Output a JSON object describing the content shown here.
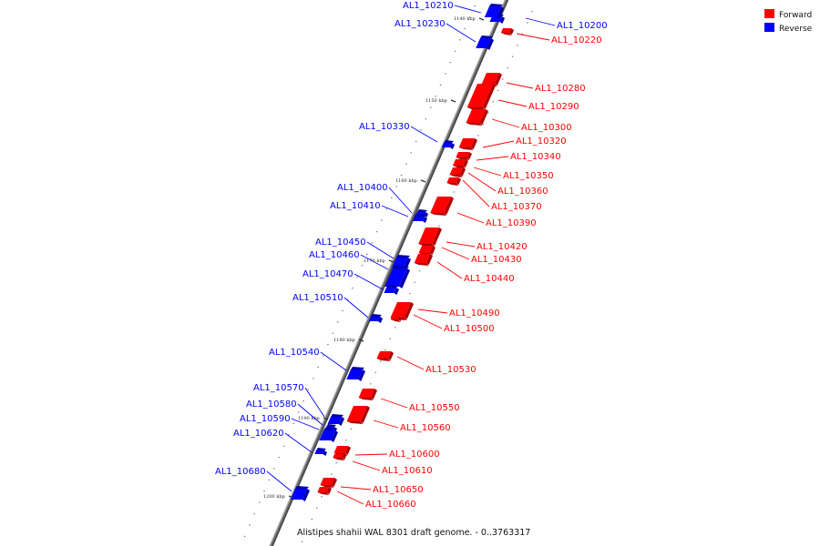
{
  "diagram": {
    "caption": "Alistipes shahii WAL 8301 draft genome. - 0..3763317",
    "legend": [
      {
        "label": "Forward",
        "color": "#ff0000"
      },
      {
        "label": "Reverse",
        "color": "#0000ff"
      }
    ],
    "colors": {
      "forward": "#ff0000",
      "forward_dark": "#b00000",
      "reverse": "#0000ff",
      "reverse_dark": "#0000a8",
      "backbone": "#6e6e6e",
      "tick": "#333333"
    },
    "kbp_labels": [
      "1140 kbp",
      "1150 kbp",
      "1160 kbp",
      "1170 kbp",
      "1180 kbp",
      "1190 kbp",
      "1200 kbp"
    ],
    "genes": [
      {
        "name": "AL1_10200",
        "strand": "reverse"
      },
      {
        "name": "AL1_10210",
        "strand": "reverse"
      },
      {
        "name": "AL1_10220",
        "strand": "forward"
      },
      {
        "name": "AL1_10230",
        "strand": "reverse"
      },
      {
        "name": "AL1_10280",
        "strand": "forward"
      },
      {
        "name": "AL1_10290",
        "strand": "forward"
      },
      {
        "name": "AL1_10300",
        "strand": "forward"
      },
      {
        "name": "AL1_10320",
        "strand": "forward"
      },
      {
        "name": "AL1_10330",
        "strand": "reverse"
      },
      {
        "name": "AL1_10340",
        "strand": "forward"
      },
      {
        "name": "AL1_10350",
        "strand": "forward"
      },
      {
        "name": "AL1_10360",
        "strand": "forward"
      },
      {
        "name": "AL1_10370",
        "strand": "forward"
      },
      {
        "name": "AL1_10390",
        "strand": "forward"
      },
      {
        "name": "AL1_10400",
        "strand": "reverse"
      },
      {
        "name": "AL1_10410",
        "strand": "reverse"
      },
      {
        "name": "AL1_10420",
        "strand": "forward"
      },
      {
        "name": "AL1_10430",
        "strand": "forward"
      },
      {
        "name": "AL1_10440",
        "strand": "forward"
      },
      {
        "name": "AL1_10450",
        "strand": "reverse"
      },
      {
        "name": "AL1_10460",
        "strand": "reverse"
      },
      {
        "name": "AL1_10470",
        "strand": "reverse"
      },
      {
        "name": "AL1_10490",
        "strand": "forward"
      },
      {
        "name": "AL1_10500",
        "strand": "forward"
      },
      {
        "name": "AL1_10510",
        "strand": "reverse"
      },
      {
        "name": "AL1_10530",
        "strand": "forward"
      },
      {
        "name": "AL1_10540",
        "strand": "reverse"
      },
      {
        "name": "AL1_10550",
        "strand": "forward"
      },
      {
        "name": "AL1_10560",
        "strand": "forward"
      },
      {
        "name": "AL1_10570",
        "strand": "reverse"
      },
      {
        "name": "AL1_10580",
        "strand": "reverse"
      },
      {
        "name": "AL1_10590",
        "strand": "reverse"
      },
      {
        "name": "AL1_10600",
        "strand": "forward"
      },
      {
        "name": "AL1_10610",
        "strand": "forward"
      },
      {
        "name": "AL1_10620",
        "strand": "reverse"
      },
      {
        "name": "AL1_10650",
        "strand": "forward"
      },
      {
        "name": "AL1_10660",
        "strand": "forward"
      },
      {
        "name": "AL1_10680",
        "strand": "reverse"
      }
    ]
  }
}
